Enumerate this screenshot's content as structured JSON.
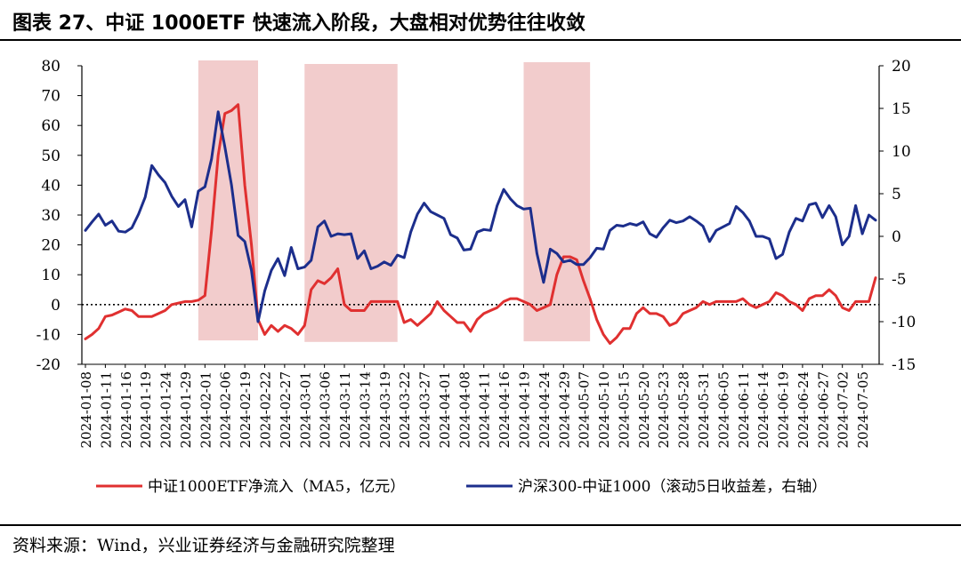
{
  "title": "图表 27、中证 1000ETF 快速流入阶段，大盘相对优势往往收敛",
  "source": "资料来源：Wind，兴业证券经济与金融研究院整理",
  "colors": {
    "red": "#e03030",
    "blue": "#1c2e8c",
    "shade": "#f2cccc",
    "axis": "#000000"
  },
  "chart_data": {
    "type": "line",
    "x": [
      "2024-01-08",
      "2024-01-09",
      "2024-01-10",
      "2024-01-11",
      "2024-01-12",
      "2024-01-15",
      "2024-01-16",
      "2024-01-17",
      "2024-01-18",
      "2024-01-19",
      "2024-01-22",
      "2024-01-23",
      "2024-01-24",
      "2024-01-25",
      "2024-01-26",
      "2024-01-29",
      "2024-01-30",
      "2024-01-31",
      "2024-02-01",
      "2024-02-02",
      "2024-02-05",
      "2024-02-06",
      "2024-02-07",
      "2024-02-08",
      "2024-02-19",
      "2024-02-20",
      "2024-02-21",
      "2024-02-22",
      "2024-02-23",
      "2024-02-26",
      "2024-02-27",
      "2024-02-28",
      "2024-02-29",
      "2024-03-01",
      "2024-03-04",
      "2024-03-05",
      "2024-03-06",
      "2024-03-07",
      "2024-03-08",
      "2024-03-11",
      "2024-03-12",
      "2024-03-13",
      "2024-03-14",
      "2024-03-15",
      "2024-03-18",
      "2024-03-19",
      "2024-03-20",
      "2024-03-21",
      "2024-03-22",
      "2024-03-25",
      "2024-03-26",
      "2024-03-27",
      "2024-03-28",
      "2024-03-29",
      "2024-04-01",
      "2024-04-02",
      "2024-04-03",
      "2024-04-08",
      "2024-04-09",
      "2024-04-10",
      "2024-04-11",
      "2024-04-12",
      "2024-04-15",
      "2024-04-16",
      "2024-04-17",
      "2024-04-18",
      "2024-04-19",
      "2024-04-22",
      "2024-04-23",
      "2024-04-24",
      "2024-04-25",
      "2024-04-26",
      "2024-04-29",
      "2024-04-30",
      "2024-05-06",
      "2024-05-07",
      "2024-05-08",
      "2024-05-09",
      "2024-05-10",
      "2024-05-13",
      "2024-05-14",
      "2024-05-15",
      "2024-05-16",
      "2024-05-17",
      "2024-05-20",
      "2024-05-21",
      "2024-05-22",
      "2024-05-23",
      "2024-05-24",
      "2024-05-27",
      "2024-05-28",
      "2024-05-29",
      "2024-05-30",
      "2024-05-31",
      "2024-06-03",
      "2024-06-04",
      "2024-06-05",
      "2024-06-06",
      "2024-06-07",
      "2024-06-11",
      "2024-06-12",
      "2024-06-13",
      "2024-06-14",
      "2024-06-17",
      "2024-06-18",
      "2024-06-19",
      "2024-06-20",
      "2024-06-21",
      "2024-06-24",
      "2024-06-25",
      "2024-06-26",
      "2024-06-27",
      "2024-06-28",
      "2024-07-01",
      "2024-07-02",
      "2024-07-03",
      "2024-07-04",
      "2024-07-05",
      "2024-07-08",
      "2024-07-09"
    ],
    "x_tick_labels": [
      "2024-01-08",
      "2024-01-11",
      "2024-01-16",
      "2024-01-19",
      "2024-01-24",
      "2024-01-29",
      "2024-02-01",
      "2024-02-06",
      "2024-02-19",
      "2024-02-22",
      "2024-02-27",
      "2024-03-01",
      "2024-03-06",
      "2024-03-11",
      "2024-03-14",
      "2024-03-19",
      "2024-03-22",
      "2024-03-27",
      "2024-04-01",
      "2024-04-08",
      "2024-04-11",
      "2024-04-16",
      "2024-04-19",
      "2024-04-24",
      "2024-04-29",
      "2024-05-07",
      "2024-05-10",
      "2024-05-15",
      "2024-05-20",
      "2024-05-23",
      "2024-05-28",
      "2024-05-31",
      "2024-06-05",
      "2024-06-11",
      "2024-06-14",
      "2024-06-19",
      "2024-06-24",
      "2024-06-27",
      "2024-07-02",
      "2024-07-05"
    ],
    "y_left": {
      "ylim": [
        -20,
        80
      ],
      "ticks": [
        -20,
        -10,
        0,
        10,
        20,
        30,
        40,
        50,
        60,
        70,
        80
      ]
    },
    "y_right": {
      "ylim": [
        -15,
        20
      ],
      "ticks": [
        -15,
        -10,
        -5,
        0,
        5,
        10,
        15,
        20
      ]
    },
    "zero_line_dotted": true,
    "shaded_periods": [
      {
        "start": "2024-01-31",
        "end": "2024-02-21"
      },
      {
        "start": "2024-03-01",
        "end": "2024-03-21"
      },
      {
        "start": "2024-04-19",
        "end": "2024-05-08"
      }
    ],
    "series": [
      {
        "name": "中证1000ETF净流入（MA5，亿元）",
        "axis": "left",
        "color": "#e03030",
        "values": [
          -11.5,
          -10,
          -8,
          -4,
          -3.5,
          -2.5,
          -1.5,
          -2,
          -4,
          -4,
          -4,
          -3,
          -2,
          0,
          0.5,
          1,
          1,
          1.5,
          3,
          25,
          50,
          64,
          65,
          67,
          40,
          20,
          -5,
          -10,
          -7,
          -9,
          -7,
          -8,
          -10,
          -7,
          5,
          8,
          7,
          9,
          12,
          0,
          -2,
          -2,
          -2,
          1,
          1,
          1,
          1,
          1,
          -6,
          -5,
          -7,
          -5,
          -3,
          1,
          -2,
          -4,
          -6,
          -6,
          -9,
          -5,
          -3,
          -2,
          -1,
          1,
          2,
          2,
          1,
          0,
          -2,
          -1,
          0,
          10,
          16,
          16,
          15,
          8,
          2,
          -5,
          -10,
          -13,
          -11,
          -8,
          -8,
          -3,
          -1,
          -3,
          -3,
          -4,
          -7,
          -6,
          -3,
          -2,
          -1,
          1,
          0,
          1,
          1,
          1,
          1,
          2,
          0,
          -1,
          0,
          1,
          4,
          3,
          1,
          0,
          -2,
          2,
          3,
          3,
          5,
          3,
          -1,
          -2,
          1,
          1,
          1,
          9
        ]
      },
      {
        "name": "沪深300-中证1000（滚动5日收益差，右轴）",
        "axis": "right",
        "color": "#1c2e8c",
        "values": [
          0.7,
          1.7,
          2.6,
          1.3,
          1.8,
          0.6,
          0.5,
          1,
          2.6,
          4.6,
          8.3,
          7.2,
          6.3,
          4.7,
          3.5,
          4.3,
          1.1,
          5.3,
          5.8,
          9.1,
          14.6,
          10.5,
          6,
          0.1,
          -0.6,
          -4,
          -10,
          -6.4,
          -4,
          -2.6,
          -4.6,
          -1.3,
          -3.8,
          -3.6,
          -2.8,
          1.1,
          1.8,
          0,
          0.3,
          0.2,
          0.3,
          -2.6,
          -1.7,
          -3.8,
          -3.5,
          -3,
          -3.4,
          -2.2,
          -2.5,
          0.5,
          2.6,
          3.9,
          2.9,
          2.5,
          2.1,
          0.2,
          -0.2,
          -1.6,
          -1.5,
          0.5,
          0.8,
          0.7,
          3.6,
          5.5,
          4.4,
          3.6,
          3.2,
          3.3,
          -2,
          -5.4,
          -1.5,
          -2,
          -3,
          -2.8,
          -3.3,
          -3.3,
          -2.5,
          -1.4,
          -1.5,
          0.7,
          1.3,
          1.2,
          1.5,
          1.3,
          1.7,
          0.3,
          -0.1,
          1,
          1.9,
          1.6,
          1.8,
          2.3,
          1.8,
          1.2,
          -0.6,
          0.7,
          1.1,
          1.5,
          3.5,
          2.8,
          1.8,
          0,
          0,
          -0.3,
          -2.6,
          -2.1,
          0.5,
          2.1,
          1.8,
          3.7,
          3.9,
          2.2,
          3.6,
          2.3,
          -1,
          0,
          3.6,
          0.3,
          2.5,
          1.9
        ]
      }
    ],
    "legend": {
      "placement": "bottom"
    }
  }
}
